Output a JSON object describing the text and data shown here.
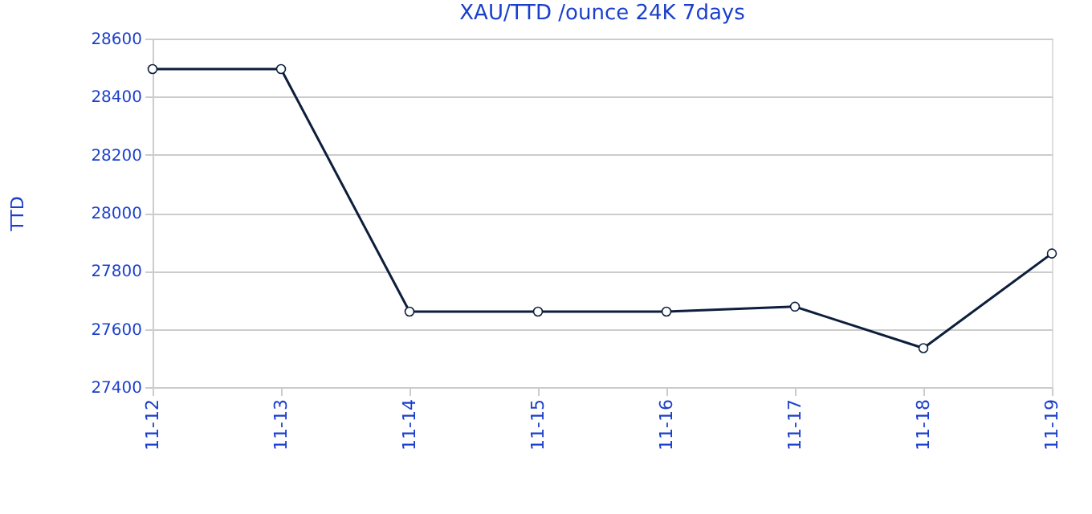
{
  "chart_data": {
    "type": "line",
    "title": "XAU/TTD /ounce 24K 7days",
    "ylabel": "TTD",
    "categories": [
      "11-12",
      "11-13",
      "11-14",
      "11-15",
      "11-16",
      "11-17",
      "11-18",
      "11-19"
    ],
    "series": [
      {
        "color": "#0d1f3c",
        "values": [
          28495,
          28495,
          27660,
          27660,
          27660,
          27677,
          27534,
          27860
        ]
      }
    ],
    "ylim": [
      27400,
      28600
    ],
    "yticks": [
      27400,
      27600,
      27800,
      28000,
      28200,
      28400,
      28600
    ],
    "grid": "y",
    "marker": "circle",
    "line_style": "solid"
  }
}
